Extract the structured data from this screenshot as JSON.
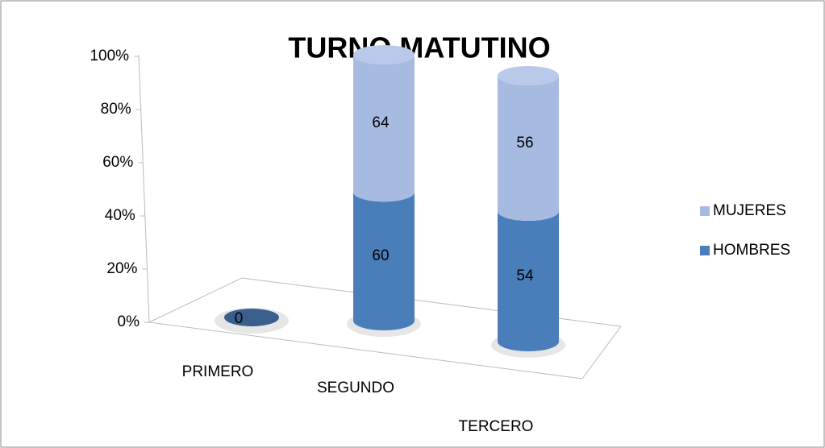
{
  "chart_data": {
    "type": "stacked_cylinder_100",
    "title": "TURNO MATUTINO",
    "categories": [
      "PRIMERO",
      "SEGUNDO",
      "TERCERO"
    ],
    "series": [
      {
        "name": "HOMBRES",
        "color": "#4a7ebb",
        "values": [
          0,
          60,
          54
        ]
      },
      {
        "name": "MUJERES",
        "color": "#a7bbe2",
        "values": [
          null,
          64,
          56
        ]
      }
    ],
    "ylim": [
      0,
      100
    ],
    "yticks": [
      {
        "value": 0,
        "label": "0%"
      },
      {
        "value": 20,
        "label": "20%"
      },
      {
        "value": 40,
        "label": "40%"
      },
      {
        "value": 60,
        "label": "60%"
      },
      {
        "value": 80,
        "label": "80%"
      },
      {
        "value": 100,
        "label": "100%"
      }
    ],
    "legend": "right"
  }
}
